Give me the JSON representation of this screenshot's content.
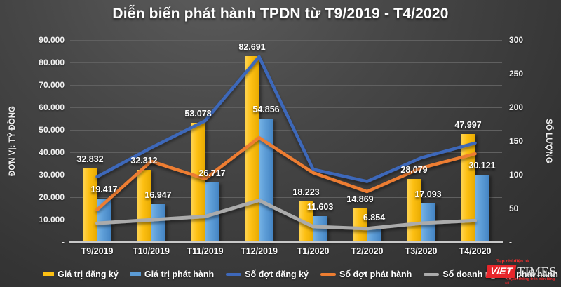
{
  "title": "Diễn biến phát hành TPDN từ T9/2019 - T4/2020",
  "left_axis": {
    "title": "ĐƠN VỊ: TỶ ĐỒNG",
    "ticks": [
      "90.000",
      "80.000",
      "70.000",
      "60.000",
      "50.000",
      "40.000",
      "30.000",
      "20.000",
      "10.000",
      "-"
    ],
    "max": 90000
  },
  "right_axis": {
    "title": "SỐ LƯỢNG",
    "ticks": [
      "300",
      "250",
      "200",
      "150",
      "100",
      "50",
      "-"
    ],
    "max": 300
  },
  "chart_data": {
    "type": "bar",
    "subtype": "combo-bar-line-dual-axis",
    "title": "Diễn biến phát hành TPDN từ T9/2019 - T4/2020",
    "categories": [
      "T9/2019",
      "T10/2019",
      "T11/2019",
      "T12/2019",
      "T1/2020",
      "T2/2020",
      "T3/2020",
      "T4/2020"
    ],
    "ylabel_left": "ĐƠN VỊ: TỶ ĐỒNG",
    "ylabel_right": "SỐ LƯỢNG",
    "ylim_left": [
      0,
      90000
    ],
    "ylim_right": [
      0,
      300
    ],
    "grid": true,
    "legend_position": "bottom",
    "series": [
      {
        "name": "Giá trị đăng ký",
        "type": "bar",
        "axis": "left",
        "color": "#FDC013",
        "values": [
          32832,
          32312,
          53078,
          82691,
          18223,
          14869,
          28079,
          47997
        ],
        "labels": [
          "32.832",
          "32.312",
          "53.078",
          "82.691",
          "18.223",
          "14.869",
          "28.079",
          "47.997"
        ]
      },
      {
        "name": "Giá trị phát hành",
        "type": "bar",
        "axis": "left",
        "color": "#5B9BD5",
        "values": [
          19417,
          16947,
          26717,
          54856,
          11603,
          6854,
          17093,
          30121
        ],
        "labels": [
          "19.417",
          "16.947",
          "26.717",
          "54.856",
          "11.603",
          "6.854",
          "17.093",
          "30.121"
        ]
      },
      {
        "name": "Số đợt đăng ký",
        "type": "line",
        "axis": "right",
        "color": "#3E68BA",
        "values": [
          97,
          140,
          180,
          275,
          108,
          90,
          125,
          147
        ]
      },
      {
        "name": "Số đợt phát hành",
        "type": "line",
        "axis": "right",
        "color": "#ED7D31",
        "values": [
          48,
          120,
          94,
          155,
          103,
          75,
          110,
          131
        ]
      },
      {
        "name": "Số doanh nghiệp phát hành",
        "type": "line",
        "axis": "right",
        "color": "#ABABAB",
        "values": [
          28,
          33,
          38,
          62,
          23,
          20,
          28,
          32
        ]
      }
    ]
  },
  "logo": {
    "tagline_top": "Tạp chí điện tử",
    "brand_red": "VIET",
    "brand_serif": "TIMES",
    "tagline_bottom": "Truyền thông trên nền tảng số",
    "red": "#E8262B"
  }
}
